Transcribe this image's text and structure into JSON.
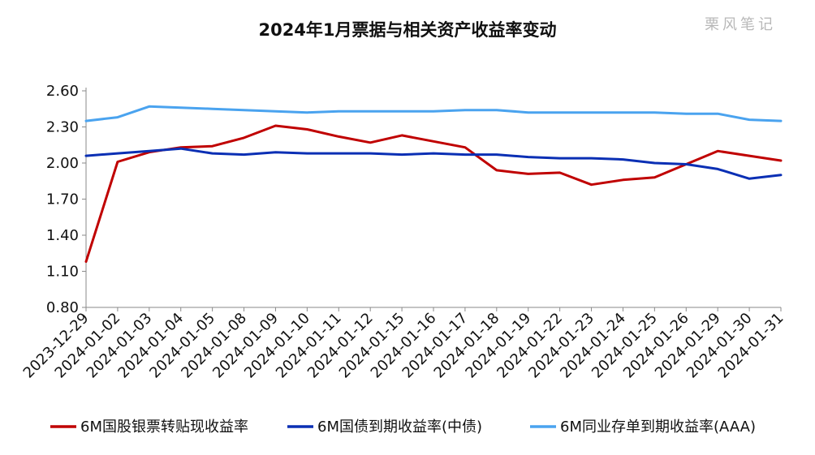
{
  "chart_data": {
    "type": "line",
    "title": "2024年1月票据与相关资产收益率变动",
    "watermark": "栗风笔记",
    "x": [
      "2023-12-29",
      "2024-01-02",
      "2024-01-03",
      "2024-01-04",
      "2024-01-05",
      "2024-01-08",
      "2024-01-09",
      "2024-01-10",
      "2024-01-11",
      "2024-01-12",
      "2024-01-15",
      "2024-01-16",
      "2024-01-17",
      "2024-01-18",
      "2024-01-19",
      "2024-01-22",
      "2024-01-23",
      "2024-01-24",
      "2024-01-25",
      "2024-01-26",
      "2024-01-29",
      "2024-01-30",
      "2024-01-31"
    ],
    "ylim": [
      0.8,
      2.6
    ],
    "yticks": [
      "0.80",
      "1.10",
      "1.40",
      "1.70",
      "2.00",
      "2.30",
      "2.60"
    ],
    "grid": false,
    "legend_position": "bottom",
    "series": [
      {
        "name": "6M国股银票转贴现收益率",
        "color": "#c00000",
        "values": [
          1.18,
          2.01,
          2.09,
          2.13,
          2.14,
          2.21,
          2.31,
          2.28,
          2.22,
          2.17,
          2.23,
          2.18,
          2.13,
          1.94,
          1.91,
          1.92,
          1.82,
          1.86,
          1.88,
          1.99,
          2.1,
          2.06,
          2.02
        ]
      },
      {
        "name": "6M国债到期收益率(中债)",
        "color": "#0a2fb4",
        "values": [
          2.06,
          2.08,
          2.1,
          2.12,
          2.08,
          2.07,
          2.09,
          2.08,
          2.08,
          2.08,
          2.07,
          2.08,
          2.07,
          2.07,
          2.05,
          2.04,
          2.04,
          2.03,
          2.0,
          1.99,
          1.95,
          1.87,
          1.9
        ]
      },
      {
        "name": "6M同业存单到期收益率(AAA)",
        "color": "#4aa3ef",
        "values": [
          2.35,
          2.38,
          2.47,
          2.46,
          2.45,
          2.44,
          2.43,
          2.42,
          2.43,
          2.43,
          2.43,
          2.43,
          2.44,
          2.44,
          2.42,
          2.42,
          2.42,
          2.42,
          2.42,
          2.41,
          2.41,
          2.36,
          2.35
        ]
      }
    ]
  }
}
